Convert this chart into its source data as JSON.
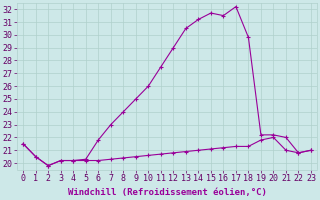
{
  "xlabel": "Windchill (Refroidissement éolien,°C)",
  "background_color": "#cde8e8",
  "grid_color": "#b0d0cc",
  "line_color": "#990099",
  "x_hours": [
    0,
    1,
    2,
    3,
    4,
    5,
    6,
    7,
    8,
    9,
    10,
    11,
    12,
    13,
    14,
    15,
    16,
    17,
    18,
    19,
    20,
    21,
    22,
    23
  ],
  "temp_line": [
    21.5,
    20.5,
    19.8,
    20.2,
    20.2,
    20.3,
    21.8,
    23.0,
    24.0,
    25.0,
    26.0,
    27.5,
    29.0,
    30.5,
    31.2,
    31.7,
    31.5,
    32.2,
    29.8,
    22.2,
    22.2,
    22.0,
    20.8,
    21.0
  ],
  "windchill_line": [
    21.5,
    20.5,
    19.8,
    20.2,
    20.2,
    20.2,
    20.2,
    20.3,
    20.4,
    20.5,
    20.6,
    20.7,
    20.8,
    20.9,
    21.0,
    21.1,
    21.2,
    21.3,
    21.3,
    21.8,
    22.0,
    21.0,
    20.8,
    21.0
  ],
  "ylim": [
    19.5,
    32.5
  ],
  "yticks": [
    20,
    21,
    22,
    23,
    24,
    25,
    26,
    27,
    28,
    29,
    30,
    31,
    32
  ],
  "xlabel_fontsize": 6.5,
  "tick_fontsize": 6.0,
  "figsize": [
    3.2,
    2.0
  ],
  "dpi": 100
}
